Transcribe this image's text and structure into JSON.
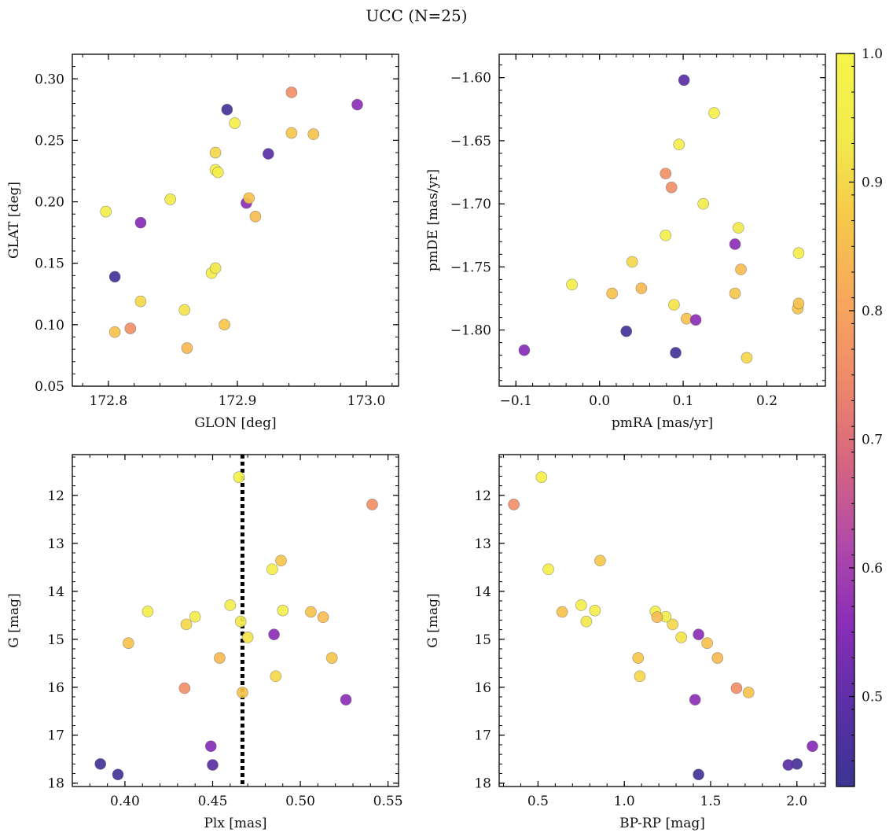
{
  "title": "UCC (N=25)",
  "colorbar": {
    "vmin": 0.43,
    "vmax": 1.0,
    "ticks": [
      0.5,
      0.6,
      0.7,
      0.8,
      0.9,
      1.0
    ],
    "tick_labels": [
      "0.5",
      "0.6",
      "0.7",
      "0.8",
      "0.9",
      "1.0"
    ],
    "colormap": "plasma",
    "stops": [
      "#3b3492",
      "#5b2fa6",
      "#8a2db8",
      "#b24aa8",
      "#d7667f",
      "#ef8a6a",
      "#f7a85c",
      "#f6c94a",
      "#f2ec4c",
      "#f7f44a"
    ]
  },
  "stars": [
    {
      "glon": 172.798,
      "glat": 0.192,
      "pmra": -0.033,
      "pmde": -1.764,
      "plx": 0.413,
      "g": 14.42,
      "bprp": 1.18,
      "p": 0.96
    },
    {
      "glon": 172.805,
      "glat": 0.139,
      "pmra": 0.032,
      "pmde": -1.801,
      "plx": 0.386,
      "g": 17.6,
      "bprp": 2.0,
      "p": 0.45
    },
    {
      "glon": 172.805,
      "glat": 0.094,
      "pmra": 0.015,
      "pmde": -1.771,
      "plx": 0.402,
      "g": 15.08,
      "bprp": 1.48,
      "p": 0.86
    },
    {
      "glon": 172.817,
      "glat": 0.097,
      "pmra": 0.079,
      "pmde": -1.676,
      "plx": 0.541,
      "g": 12.19,
      "bprp": 0.36,
      "p": 0.76
    },
    {
      "glon": 172.825,
      "glat": 0.183,
      "pmra": -0.09,
      "pmde": -1.816,
      "plx": 0.449,
      "g": 17.23,
      "bprp": 2.09,
      "p": 0.55
    },
    {
      "glon": 172.825,
      "glat": 0.119,
      "pmra": 0.039,
      "pmde": -1.746,
      "plx": 0.435,
      "g": 14.69,
      "bprp": 1.28,
      "p": 0.9
    },
    {
      "glon": 172.848,
      "glat": 0.202,
      "pmra": 0.124,
      "pmde": -1.7,
      "plx": 0.44,
      "g": 14.53,
      "bprp": 1.24,
      "p": 0.94
    },
    {
      "glon": 172.859,
      "glat": 0.112,
      "pmra": 0.089,
      "pmde": -1.78,
      "plx": 0.47,
      "g": 14.96,
      "bprp": 1.33,
      "p": 0.92
    },
    {
      "glon": 172.861,
      "glat": 0.081,
      "pmra": 0.05,
      "pmde": -1.767,
      "plx": 0.454,
      "g": 15.39,
      "bprp": 1.54,
      "p": 0.84
    },
    {
      "glon": 172.88,
      "glat": 0.142,
      "pmra": 0.079,
      "pmde": -1.725,
      "plx": 0.49,
      "g": 14.4,
      "bprp": 0.83,
      "p": 0.95
    },
    {
      "glon": 172.883,
      "glat": 0.146,
      "pmra": 0.166,
      "pmde": -1.719,
      "plx": 0.466,
      "g": 14.63,
      "bprp": 0.78,
      "p": 0.93
    },
    {
      "glon": 172.883,
      "glat": 0.24,
      "pmra": 0.176,
      "pmde": -1.822,
      "plx": 0.486,
      "g": 15.77,
      "bprp": 1.09,
      "p": 0.9
    },
    {
      "glon": 172.883,
      "glat": 0.226,
      "pmra": 0.137,
      "pmde": -1.628,
      "plx": 0.465,
      "g": 11.62,
      "bprp": 0.52,
      "p": 0.97
    },
    {
      "glon": 172.885,
      "glat": 0.224,
      "pmra": 0.095,
      "pmde": -1.653,
      "plx": 0.46,
      "g": 14.29,
      "bprp": 0.75,
      "p": 0.95
    },
    {
      "glon": 172.89,
      "glat": 0.1,
      "pmra": 0.237,
      "pmde": -1.783,
      "plx": 0.518,
      "g": 15.39,
      "bprp": 1.08,
      "p": 0.87
    },
    {
      "glon": 172.892,
      "glat": 0.275,
      "pmra": 0.091,
      "pmde": -1.818,
      "plx": 0.396,
      "g": 17.82,
      "bprp": 1.43,
      "p": 0.45
    },
    {
      "glon": 172.898,
      "glat": 0.264,
      "pmra": 0.238,
      "pmde": -1.739,
      "plx": 0.484,
      "g": 13.54,
      "bprp": 0.56,
      "p": 0.96
    },
    {
      "glon": 172.907,
      "glat": 0.199,
      "pmra": 0.162,
      "pmde": -1.732,
      "plx": 0.485,
      "g": 14.9,
      "bprp": 1.43,
      "p": 0.56
    },
    {
      "glon": 172.909,
      "glat": 0.203,
      "pmra": 0.104,
      "pmde": -1.791,
      "plx": 0.506,
      "g": 14.43,
      "bprp": 0.64,
      "p": 0.86
    },
    {
      "glon": 172.914,
      "glat": 0.188,
      "pmra": 0.169,
      "pmde": -1.752,
      "plx": 0.513,
      "g": 14.54,
      "bprp": 1.19,
      "p": 0.85
    },
    {
      "glon": 172.924,
      "glat": 0.239,
      "pmra": 0.101,
      "pmde": -1.602,
      "plx": 0.45,
      "g": 17.62,
      "bprp": 1.95,
      "p": 0.49
    },
    {
      "glon": 172.942,
      "glat": 0.289,
      "pmra": 0.086,
      "pmde": -1.687,
      "plx": 0.434,
      "g": 16.02,
      "bprp": 1.65,
      "p": 0.76
    },
    {
      "glon": 172.942,
      "glat": 0.256,
      "pmra": 0.162,
      "pmde": -1.771,
      "plx": 0.489,
      "g": 13.36,
      "bprp": 0.86,
      "p": 0.87
    },
    {
      "glon": 172.959,
      "glat": 0.255,
      "pmra": 0.238,
      "pmde": -1.779,
      "plx": 0.467,
      "g": 16.11,
      "bprp": 1.72,
      "p": 0.86
    },
    {
      "glon": 172.993,
      "glat": 0.279,
      "pmra": 0.115,
      "pmde": -1.792,
      "plx": 0.526,
      "g": 16.26,
      "bprp": 1.41,
      "p": 0.56
    }
  ],
  "chart_data": [
    {
      "type": "scatter",
      "xlabel": "GLON [deg]",
      "ylabel": "GLAT [deg]",
      "xkey": "glon",
      "ykey": "glat",
      "xlim": [
        172.772,
        173.025
      ],
      "ylim": [
        0.05,
        0.32
      ],
      "xticks": [
        172.8,
        172.9,
        173.0
      ],
      "xtick_labels": [
        "172.8",
        "172.9",
        "173.0"
      ],
      "yticks": [
        0.05,
        0.1,
        0.15,
        0.2,
        0.25,
        0.3
      ],
      "ytick_labels": [
        "0.05",
        "0.10",
        "0.15",
        "0.20",
        "0.25",
        "0.30"
      ],
      "invert_y": false
    },
    {
      "type": "scatter",
      "xlabel": "pmRA [mas/yr]",
      "ylabel": "pmDE [mas/yr]",
      "xkey": "pmra",
      "ykey": "pmde",
      "xlim": [
        -0.12,
        0.27
      ],
      "ylim": [
        -1.8445,
        -1.5815
      ],
      "xticks": [
        -0.1,
        0.0,
        0.1,
        0.2
      ],
      "xtick_labels": [
        "−0.1",
        "0.0",
        "0.1",
        "0.2"
      ],
      "yticks": [
        -1.8,
        -1.75,
        -1.7,
        -1.65,
        -1.6
      ],
      "ytick_labels": [
        "−1.80",
        "−1.75",
        "−1.70",
        "−1.65",
        "−1.60"
      ],
      "invert_y": false
    },
    {
      "type": "scatter",
      "xlabel": "Plx [mas]",
      "ylabel": "G [mag]",
      "xkey": "plx",
      "ykey": "g",
      "xlim": [
        0.37,
        0.556
      ],
      "ylim": [
        11.15,
        18.07
      ],
      "xticks": [
        0.4,
        0.45,
        0.5,
        0.55
      ],
      "xtick_labels": [
        "0.40",
        "0.45",
        "0.50",
        "0.55"
      ],
      "yticks": [
        12,
        13,
        14,
        15,
        16,
        17,
        18
      ],
      "ytick_labels": [
        "12",
        "13",
        "14",
        "15",
        "16",
        "17",
        "18"
      ],
      "invert_y": true,
      "vline": {
        "x": 0.467,
        "style": "dotted",
        "color": "#000000"
      }
    },
    {
      "type": "scatter",
      "xlabel": "BP-RP [mag]",
      "ylabel": "G [mag]",
      "xkey": "bprp",
      "ykey": "g",
      "xlim": [
        0.275,
        2.165
      ],
      "ylim": [
        11.15,
        18.07
      ],
      "xticks": [
        0.5,
        1.0,
        1.5,
        2.0
      ],
      "xtick_labels": [
        "0.5",
        "1.0",
        "1.5",
        "2.0"
      ],
      "yticks": [
        12,
        13,
        14,
        15,
        16,
        17,
        18
      ],
      "ytick_labels": [
        "12",
        "13",
        "14",
        "15",
        "16",
        "17",
        "18"
      ],
      "invert_y": true
    }
  ]
}
